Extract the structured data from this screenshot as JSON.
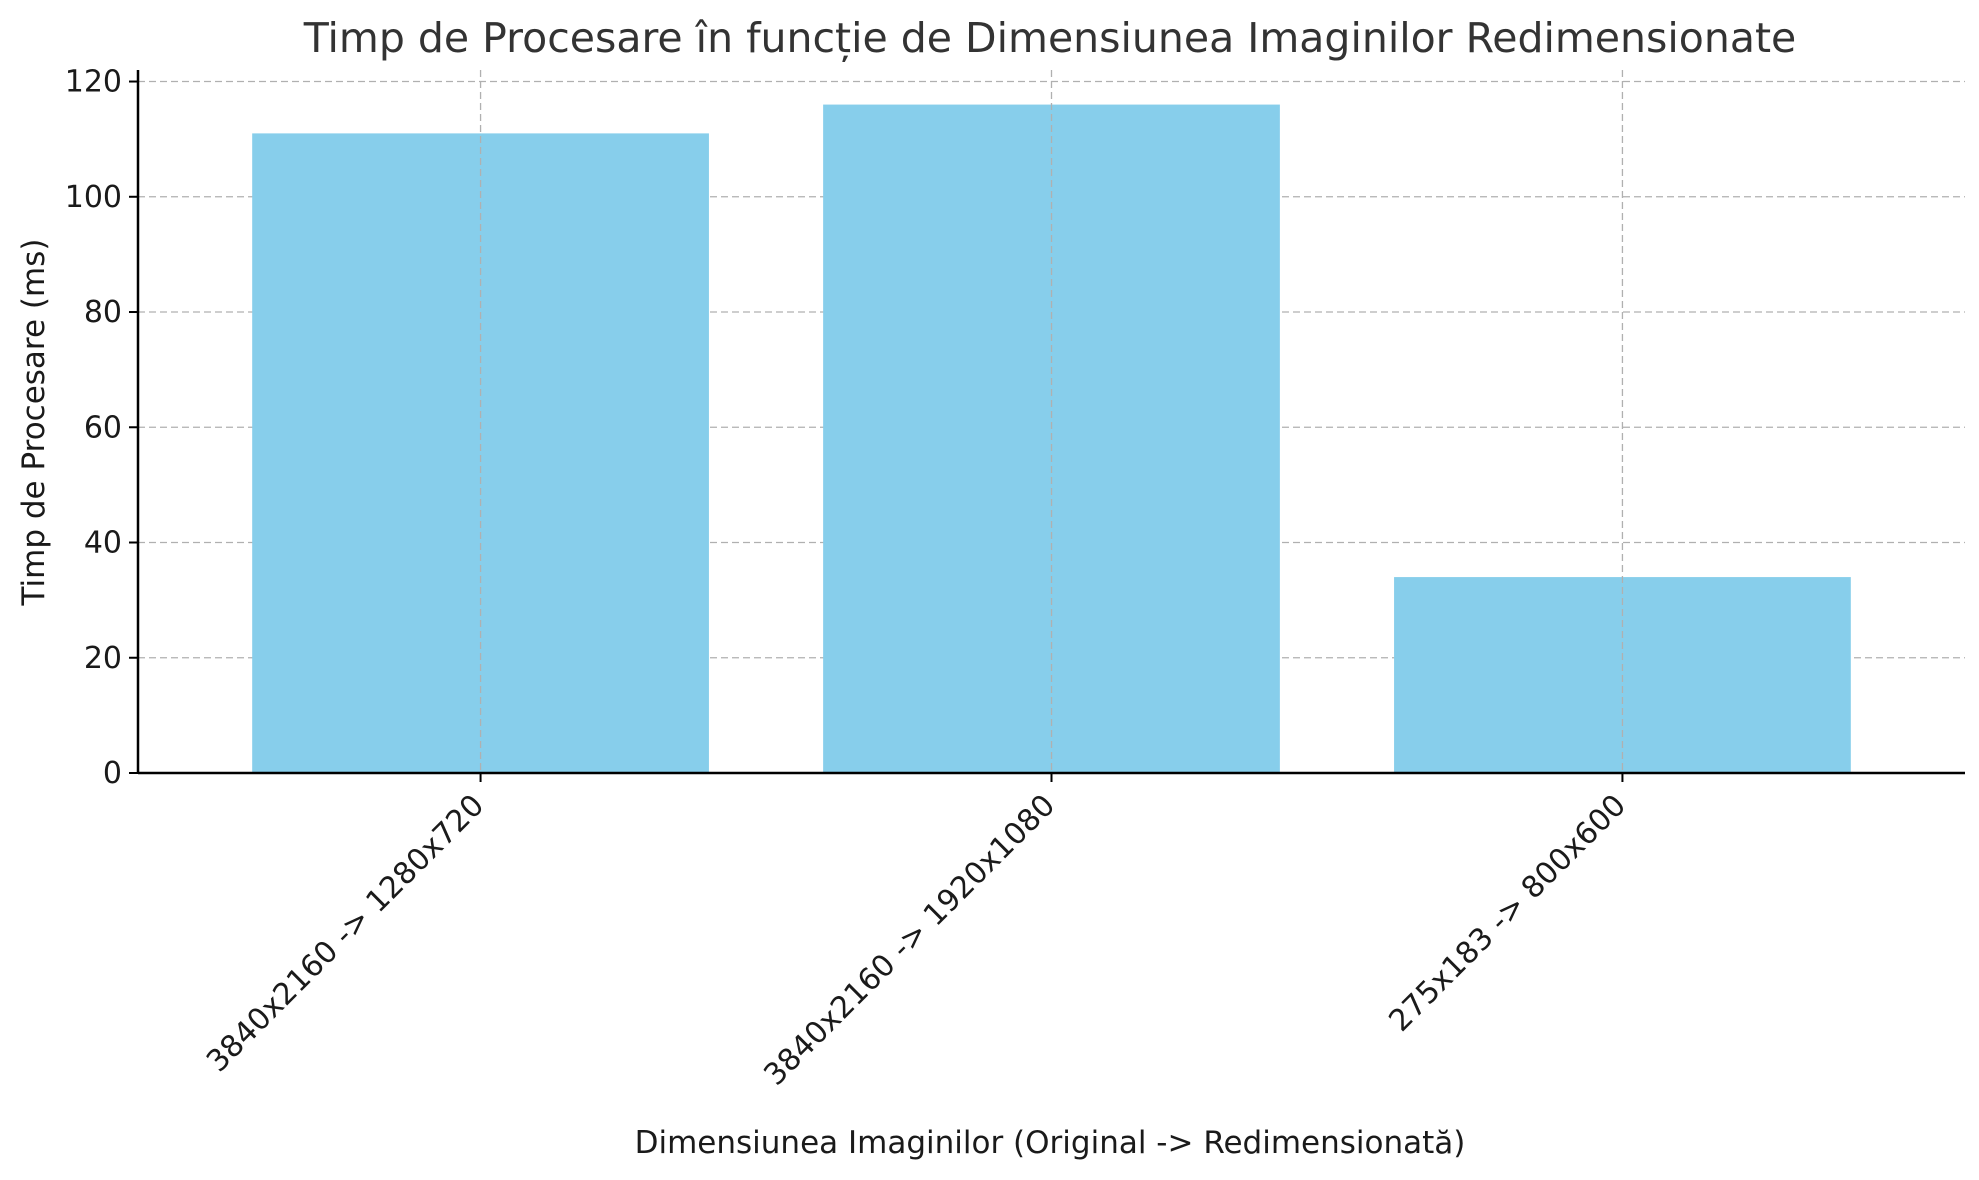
{
  "chart_data": {
    "type": "bar",
    "title": "Timp de Procesare în funcție de Dimensiunea Imaginilor Redimensionate",
    "xlabel": "Dimensiunea Imaginilor (Original -> Redimensionată)",
    "ylabel": "Timp de Procesare (ms)",
    "categories": [
      "3840x2160 -> 1280x720",
      "3840x2160 -> 1920x1080",
      "275x183 -> 800x600"
    ],
    "values": [
      111,
      116,
      34
    ],
    "ylim": [
      0,
      122
    ],
    "yticks": [
      0,
      20,
      40,
      60,
      80,
      100,
      120
    ],
    "grid": true,
    "bar_color": "#87CEEB",
    "legend": "none"
  }
}
